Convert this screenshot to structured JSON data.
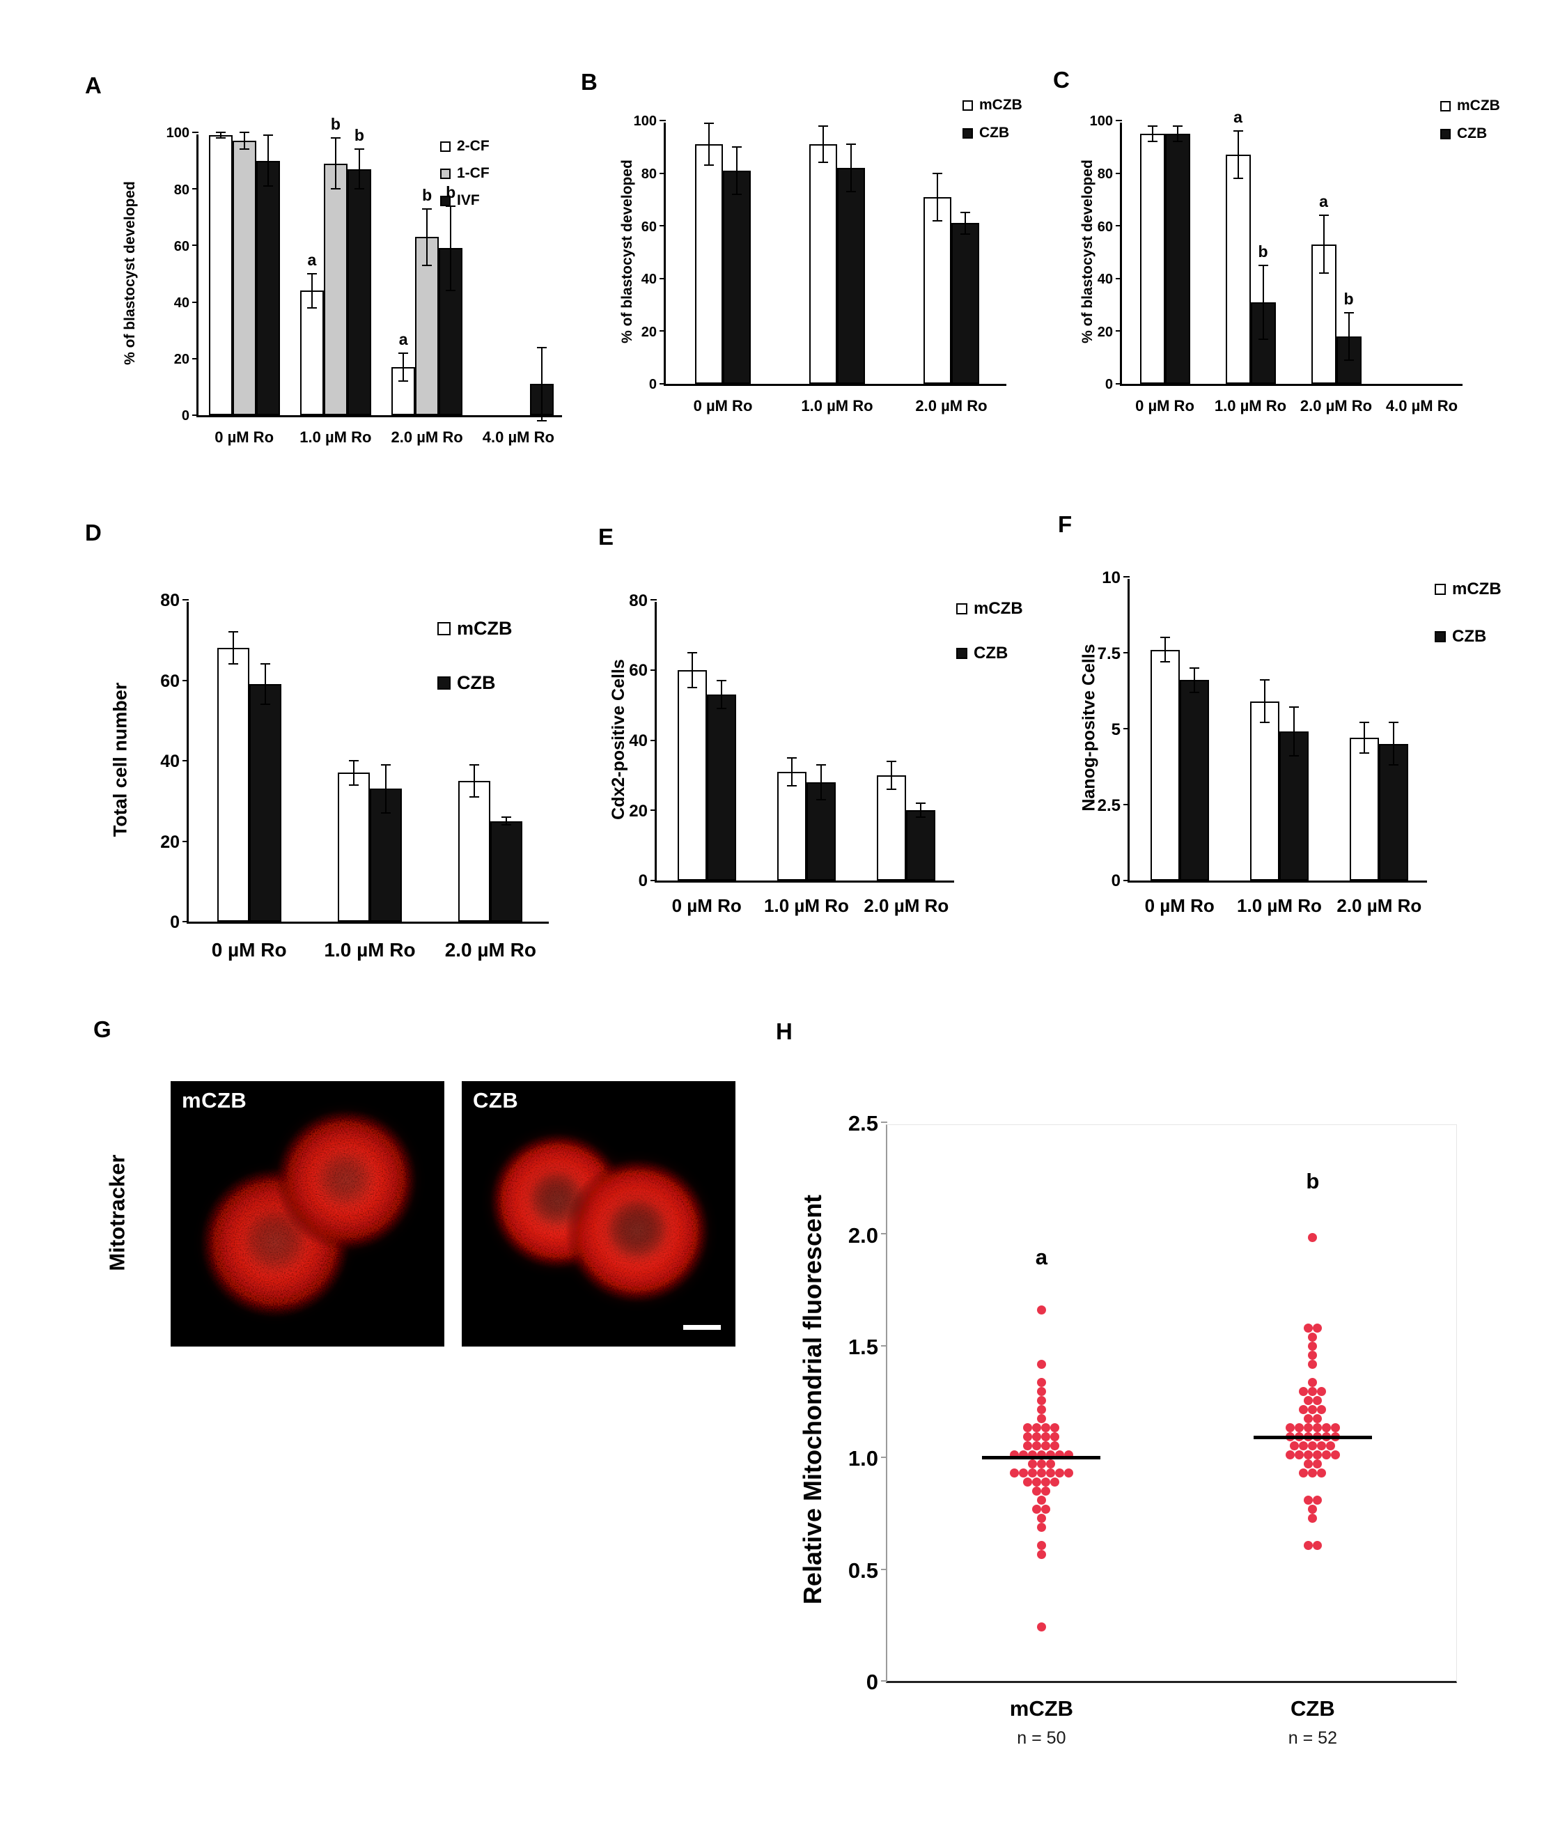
{
  "panels": {
    "A": "A",
    "B": "B",
    "C": "C",
    "D": "D",
    "E": "E",
    "F": "F",
    "G": "G",
    "H": "H"
  },
  "panel_g": {
    "row_label": "Mitotracker",
    "images": [
      {
        "label": "mCZB"
      },
      {
        "label": "CZB"
      }
    ],
    "scalebar": "scale-bar"
  },
  "colors": {
    "white": "#ffffff",
    "gray": "#c9c9c9",
    "black": "#121212",
    "dot": "#e9334a",
    "axis": "#000000"
  },
  "chart_data": [
    {
      "id": "A",
      "type": "bar",
      "ylabel": "% of blastocyst developed",
      "ylim": [
        0,
        100
      ],
      "yticks": [
        "0",
        "20",
        "40",
        "60",
        "80",
        "100"
      ],
      "categories": [
        "0 µM Ro",
        "1.0 µM Ro",
        "2.0 µM Ro",
        "4.0 µM Ro"
      ],
      "legend_position": "top-right",
      "series": [
        {
          "name": "2-CF",
          "fill": "white",
          "values": [
            99,
            44,
            17,
            0
          ],
          "errors": [
            1,
            6,
            5,
            0
          ],
          "notes": [
            "",
            "a",
            "a",
            ""
          ]
        },
        {
          "name": "1-CF",
          "fill": "gray",
          "values": [
            97,
            89,
            63,
            0
          ],
          "errors": [
            3,
            9,
            10,
            0
          ],
          "notes": [
            "",
            "b",
            "b",
            ""
          ]
        },
        {
          "name": "IVF",
          "fill": "black",
          "values": [
            90,
            87,
            59,
            11
          ],
          "errors": [
            9,
            7,
            15,
            13
          ],
          "notes": [
            "",
            "b",
            "b",
            ""
          ]
        }
      ]
    },
    {
      "id": "B",
      "type": "bar",
      "ylabel": "% of blastocyst developed",
      "ylim": [
        0,
        100
      ],
      "yticks": [
        "0",
        "20",
        "40",
        "60",
        "80",
        "100"
      ],
      "categories": [
        "0 µM Ro",
        "1.0 µM Ro",
        "2.0 µM Ro"
      ],
      "legend_position": "top-right",
      "series": [
        {
          "name": "mCZB",
          "fill": "white",
          "values": [
            91,
            91,
            71
          ],
          "errors": [
            8,
            7,
            9
          ],
          "notes": [
            "",
            "",
            ""
          ]
        },
        {
          "name": "CZB",
          "fill": "black",
          "values": [
            81,
            82,
            61
          ],
          "errors": [
            9,
            9,
            4
          ],
          "notes": [
            "",
            "",
            ""
          ]
        }
      ]
    },
    {
      "id": "C",
      "type": "bar",
      "ylabel": "% of blastocyst developed",
      "ylim": [
        0,
        100
      ],
      "yticks": [
        "0",
        "20",
        "40",
        "60",
        "80",
        "100"
      ],
      "categories": [
        "0 µM Ro",
        "1.0 µM Ro",
        "2.0 µM Ro",
        "4.0 µM Ro"
      ],
      "legend_position": "top-right",
      "series": [
        {
          "name": "mCZB",
          "fill": "white",
          "values": [
            95,
            87,
            53,
            0
          ],
          "errors": [
            3,
            9,
            11,
            0
          ],
          "notes": [
            "",
            "a",
            "a",
            ""
          ]
        },
        {
          "name": "CZB",
          "fill": "black",
          "values": [
            95,
            31,
            18,
            0
          ],
          "errors": [
            3,
            14,
            9,
            0
          ],
          "notes": [
            "",
            "b",
            "b",
            ""
          ]
        }
      ]
    },
    {
      "id": "D",
      "type": "bar",
      "ylabel": "Total cell number",
      "ylim": [
        0,
        80
      ],
      "yticks": [
        "0",
        "20",
        "40",
        "60",
        "80"
      ],
      "categories": [
        "0 µM Ro",
        "1.0 µM Ro",
        "2.0 µM Ro"
      ],
      "legend_position": "top-right",
      "series": [
        {
          "name": "mCZB",
          "fill": "white",
          "values": [
            68,
            37,
            35
          ],
          "errors": [
            4,
            3,
            4
          ],
          "notes": [
            "",
            "",
            ""
          ]
        },
        {
          "name": "CZB",
          "fill": "black",
          "values": [
            59,
            33,
            25
          ],
          "errors": [
            5,
            6,
            1
          ],
          "notes": [
            "",
            "",
            ""
          ]
        }
      ]
    },
    {
      "id": "E",
      "type": "bar",
      "ylabel": "Cdx2-positive Cells",
      "ylim": [
        0,
        80
      ],
      "yticks": [
        "0",
        "20",
        "40",
        "60",
        "80"
      ],
      "categories": [
        "0 µM Ro",
        "1.0 µM Ro",
        "2.0 µM Ro"
      ],
      "legend_position": "top-right",
      "series": [
        {
          "name": "mCZB",
          "fill": "white",
          "values": [
            60,
            31,
            30
          ],
          "errors": [
            5,
            4,
            4
          ],
          "notes": [
            "",
            "",
            ""
          ]
        },
        {
          "name": "CZB",
          "fill": "black",
          "values": [
            53,
            28,
            20
          ],
          "errors": [
            4,
            5,
            2
          ],
          "notes": [
            "",
            "",
            ""
          ]
        }
      ]
    },
    {
      "id": "F",
      "type": "bar",
      "ylabel": "Nanog-positve Cells",
      "ylim": [
        0,
        10
      ],
      "yticks": [
        "0",
        "2.5",
        "5",
        "7.5",
        "10"
      ],
      "categories": [
        "0 µM Ro",
        "1.0 µM Ro",
        "2.0 µM Ro"
      ],
      "legend_position": "top-right",
      "series": [
        {
          "name": "mCZB",
          "fill": "white",
          "values": [
            7.6,
            5.9,
            4.7
          ],
          "errors": [
            0.4,
            0.7,
            0.5
          ],
          "notes": [
            "",
            "",
            ""
          ]
        },
        {
          "name": "CZB",
          "fill": "black",
          "values": [
            6.6,
            4.9,
            4.5
          ],
          "errors": [
            0.4,
            0.8,
            0.7
          ],
          "notes": [
            "",
            "",
            ""
          ]
        }
      ]
    },
    {
      "id": "H",
      "type": "dotplot",
      "ylabel": "Relative Mitochondrial fluorescent",
      "ylim": [
        0,
        2.5
      ],
      "yticks": [
        "0",
        "0.5",
        "1.0",
        "1.5",
        "2.0",
        "2.5"
      ],
      "groups": [
        {
          "name": "mCZB",
          "n_label": "n = 50",
          "note": "a",
          "note_y": 1.84,
          "mean": 1.0,
          "values": [
            0.25,
            0.57,
            0.62,
            0.68,
            0.72,
            0.75,
            0.78,
            0.82,
            0.85,
            0.87,
            0.88,
            0.9,
            0.9,
            0.9,
            0.92,
            0.92,
            0.93,
            0.95,
            0.95,
            0.95,
            0.95,
            0.97,
            0.97,
            0.98,
            1.0,
            1.0,
            1.0,
            1.0,
            1.02,
            1.02,
            1.03,
            1.05,
            1.05,
            1.05,
            1.07,
            1.08,
            1.1,
            1.1,
            1.1,
            1.12,
            1.13,
            1.15,
            1.15,
            1.18,
            1.2,
            1.25,
            1.3,
            1.32,
            1.4,
            1.68
          ]
        },
        {
          "name": "CZB",
          "n_label": "n = 52",
          "note": "b",
          "note_y": 2.18,
          "mean": 1.09,
          "values": [
            0.6,
            0.62,
            0.72,
            0.78,
            0.8,
            0.8,
            0.92,
            0.95,
            0.95,
            0.97,
            0.98,
            1.0,
            1.0,
            1.0,
            1.02,
            1.02,
            1.03,
            1.05,
            1.05,
            1.05,
            1.05,
            1.07,
            1.08,
            1.08,
            1.1,
            1.1,
            1.1,
            1.1,
            1.12,
            1.12,
            1.13,
            1.15,
            1.15,
            1.15,
            1.17,
            1.18,
            1.2,
            1.2,
            1.22,
            1.25,
            1.25,
            1.28,
            1.3,
            1.3,
            1.35,
            1.4,
            1.45,
            1.5,
            1.55,
            1.6,
            1.6,
            2.0
          ]
        }
      ]
    }
  ]
}
